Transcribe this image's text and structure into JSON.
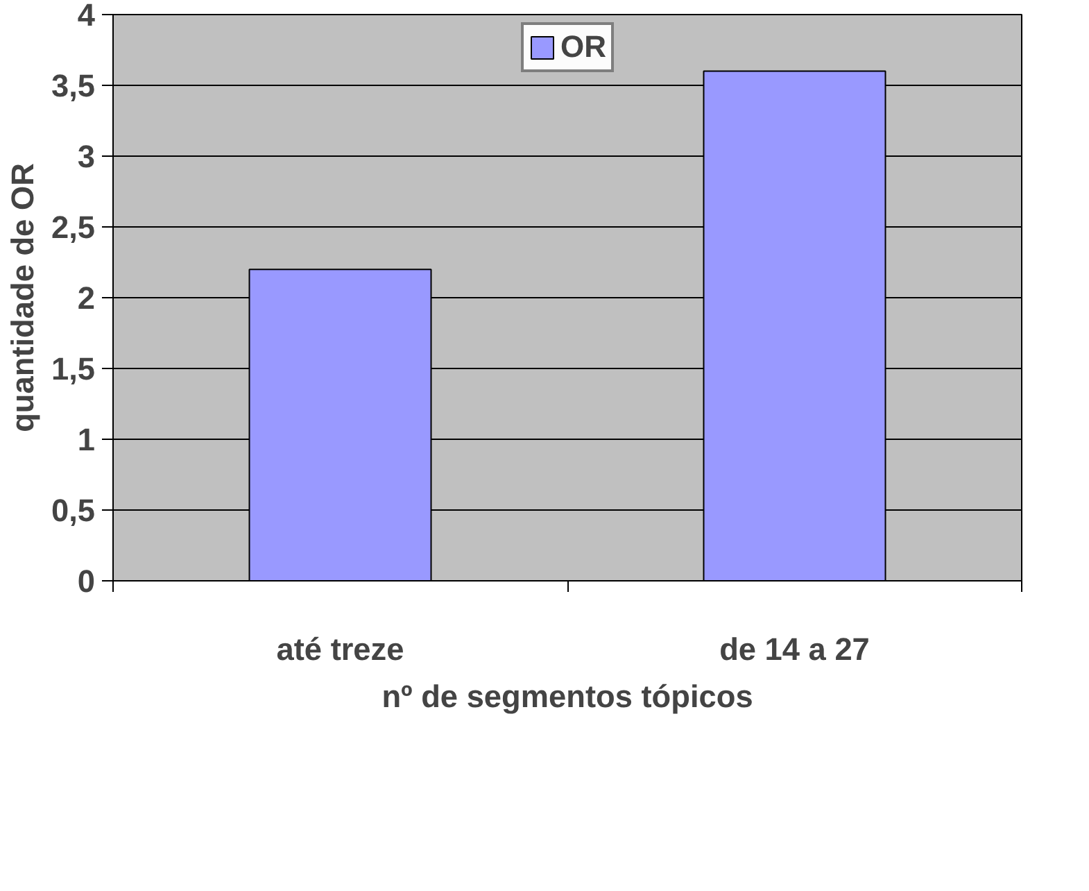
{
  "chart_data": {
    "type": "bar",
    "categories": [
      "até treze",
      "de 14 a 27"
    ],
    "series": [
      {
        "name": "OR",
        "color": "#9999ff",
        "values": [
          2.2,
          3.6
        ]
      }
    ],
    "xlabel": "nº de segmentos tópicos",
    "ylabel": "quantidade de OR",
    "ylim": [
      0,
      4
    ],
    "yticks": [
      0,
      {
        "value": 0.5,
        "label": "0,5"
      },
      1,
      {
        "value": 1.5,
        "label": "1,5"
      },
      2,
      {
        "value": 2.5,
        "label": "2,5"
      },
      3,
      {
        "value": 3.5,
        "label": "3,5"
      },
      4
    ],
    "grid": "y",
    "legend": "top"
  }
}
